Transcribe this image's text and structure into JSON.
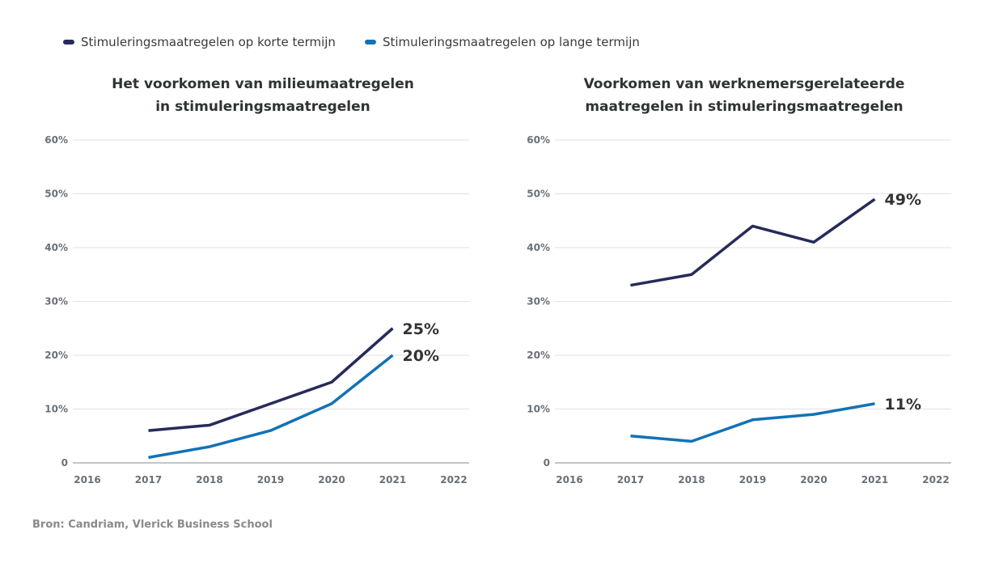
{
  "legend": [
    {
      "label": "Stimuleringsmaatregelen op korte termijn",
      "color": "#262b5a"
    },
    {
      "label": "Stimuleringsmaatregelen op lange termijn",
      "color": "#1272b5"
    }
  ],
  "source": "Bron: Candriam, Vlerick Business School",
  "chart_data": [
    {
      "type": "line",
      "title_lines": [
        "Het voorkomen van milieumaatregelen",
        "in stimuleringsmaatregelen"
      ],
      "x_ticks": [
        "2016",
        "2017",
        "2018",
        "2019",
        "2020",
        "2021",
        "2022"
      ],
      "y_ticks": [
        "0",
        "10%",
        "20%",
        "30%",
        "40%",
        "50%",
        "60%"
      ],
      "ylim": [
        0,
        60
      ],
      "grid": true,
      "x": [
        2017,
        2018,
        2019,
        2020,
        2021
      ],
      "series": [
        {
          "name": "Stimuleringsmaatregelen op korte termijn",
          "color": "#262b5a",
          "values": [
            6,
            7,
            11,
            15,
            25
          ],
          "end_label": "25%"
        },
        {
          "name": "Stimuleringsmaatregelen op lange termijn",
          "color": "#1272b5",
          "values": [
            1,
            3,
            6,
            11,
            20
          ],
          "end_label": "20%"
        }
      ]
    },
    {
      "type": "line",
      "title_lines": [
        "Voorkomen van werknemersgerelateerde",
        "maatregelen in stimuleringsmaatregelen"
      ],
      "x_ticks": [
        "2016",
        "2017",
        "2018",
        "2019",
        "2020",
        "2021",
        "2022"
      ],
      "y_ticks": [
        "0",
        "10%",
        "20%",
        "30%",
        "40%",
        "50%",
        "60%"
      ],
      "ylim": [
        0,
        60
      ],
      "grid": true,
      "x": [
        2017,
        2018,
        2019,
        2020,
        2021
      ],
      "series": [
        {
          "name": "Stimuleringsmaatregelen op korte termijn",
          "color": "#262b5a",
          "values": [
            33,
            35,
            44,
            41,
            49
          ],
          "end_label": "49%"
        },
        {
          "name": "Stimuleringsmaatregelen op lange termijn",
          "color": "#1272b5",
          "values": [
            5,
            4,
            8,
            9,
            11
          ],
          "end_label": "11%"
        }
      ]
    }
  ]
}
